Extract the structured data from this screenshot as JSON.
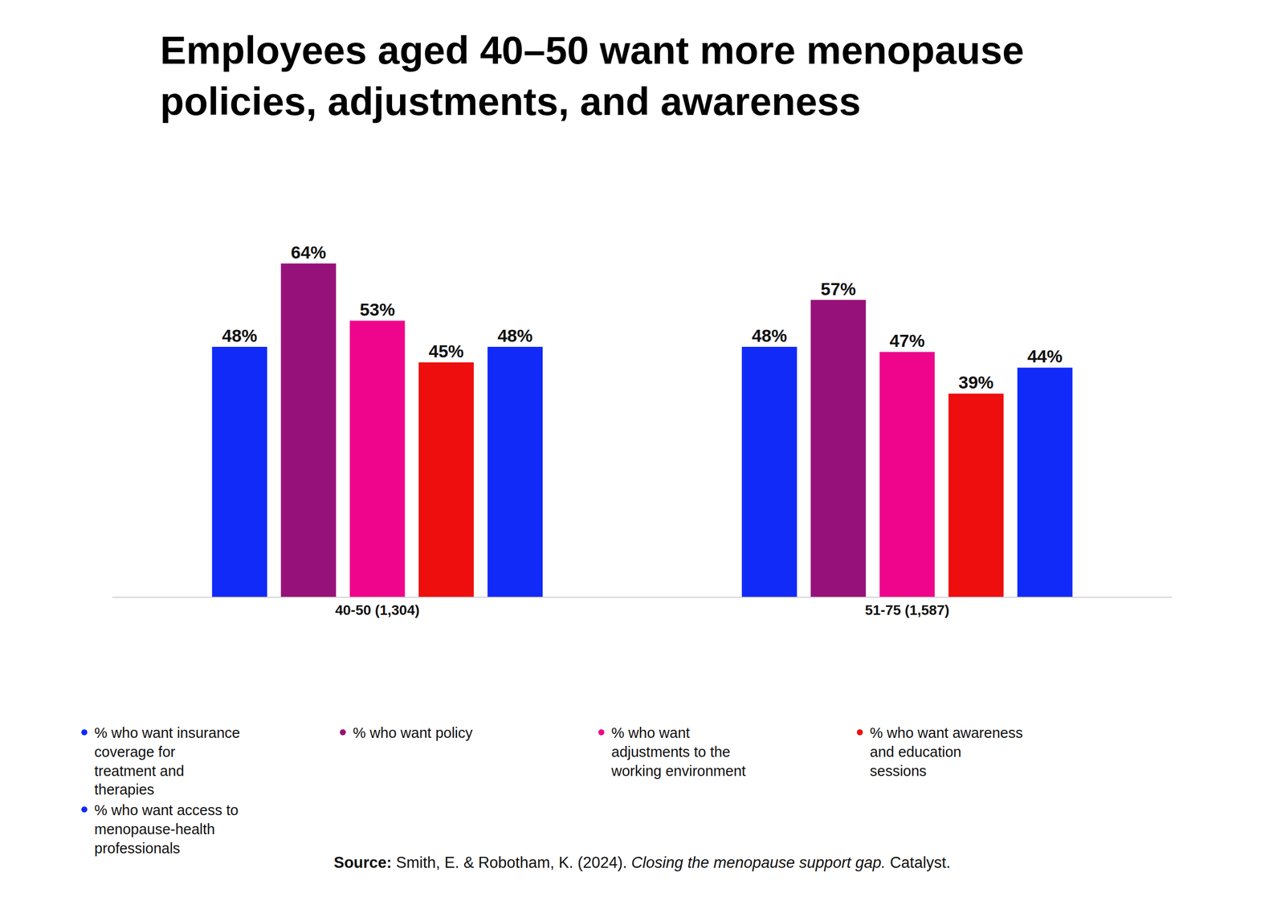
{
  "chart_data": {
    "type": "bar",
    "title": "Employees aged 40–50 want more menopause policies, adjustments, and awareness",
    "categories": [
      "40-50 (1,304)",
      "51-75 (1,587)"
    ],
    "series": [
      {
        "name": "% who want insurance coverage for treatment and therapies",
        "color": "#112af8",
        "values": [
          48,
          48
        ],
        "value_labels": [
          "48%",
          "48%"
        ]
      },
      {
        "name": "% who want policy",
        "color": "#97117a",
        "values": [
          64,
          57
        ],
        "value_labels": [
          "64%",
          "57%"
        ]
      },
      {
        "name": "% who want adjustments to the working environment",
        "color": "#ee058b",
        "values": [
          53,
          47
        ],
        "value_labels": [
          "53%",
          "47%"
        ]
      },
      {
        "name": "% who want awareness and education sessions",
        "color": "#ee0e0e",
        "values": [
          45,
          39
        ],
        "value_labels": [
          "45%",
          "39%"
        ]
      },
      {
        "name": "% who want access to menopause-health professionals",
        "color": "#112af8",
        "values": [
          48,
          44
        ],
        "value_labels": [
          "48%",
          "44%"
        ]
      }
    ],
    "data_labels": true,
    "tick_labels": "x",
    "grid": false,
    "legend": "bottom",
    "marker": "circle",
    "source_label": "Source:",
    "source": [
      "Smith, E. & Robotham, K. (2024).",
      "Closing the menopause support gap.",
      "Catalyst."
    ]
  }
}
